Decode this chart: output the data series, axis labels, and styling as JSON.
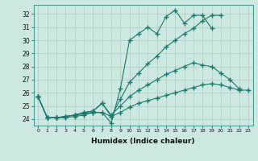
{
  "xlabel": "Humidex (Indice chaleur)",
  "ylabel": "",
  "bg_color": "#cce8e0",
  "grid_color": "#aaccc4",
  "line_color": "#1a7a6e",
  "xlim": [
    -0.5,
    23.5
  ],
  "ylim": [
    23.5,
    32.7
  ],
  "yticks": [
    24,
    25,
    26,
    27,
    28,
    29,
    30,
    31,
    32
  ],
  "xticks": [
    0,
    1,
    2,
    3,
    4,
    5,
    6,
    7,
    8,
    9,
    10,
    11,
    12,
    13,
    14,
    15,
    16,
    17,
    18,
    19,
    20,
    21,
    22,
    23
  ],
  "series": [
    [
      25.7,
      24.1,
      24.1,
      24.1,
      24.2,
      24.3,
      24.5,
      24.5,
      23.7,
      26.3,
      30.0,
      30.5,
      31.0,
      30.5,
      31.8,
      32.3,
      31.3,
      31.9,
      31.9,
      30.9,
      null,
      null,
      null,
      null
    ],
    [
      25.7,
      24.1,
      24.1,
      24.2,
      24.3,
      24.5,
      24.6,
      25.2,
      24.2,
      25.5,
      26.8,
      27.5,
      28.2,
      28.8,
      29.5,
      30.0,
      30.5,
      30.9,
      31.5,
      31.9,
      31.9,
      null,
      null,
      null
    ],
    [
      25.7,
      24.1,
      24.1,
      24.2,
      24.3,
      24.5,
      24.6,
      25.2,
      24.3,
      25.0,
      25.7,
      26.2,
      26.6,
      27.0,
      27.4,
      27.7,
      28.0,
      28.3,
      28.1,
      28.0,
      27.5,
      27.0,
      26.3,
      null
    ],
    [
      25.7,
      24.1,
      24.1,
      24.2,
      24.3,
      24.4,
      24.5,
      24.5,
      24.2,
      24.5,
      24.9,
      25.2,
      25.4,
      25.6,
      25.8,
      26.0,
      26.2,
      26.4,
      26.6,
      26.7,
      26.6,
      26.4,
      26.2,
      26.2
    ]
  ]
}
